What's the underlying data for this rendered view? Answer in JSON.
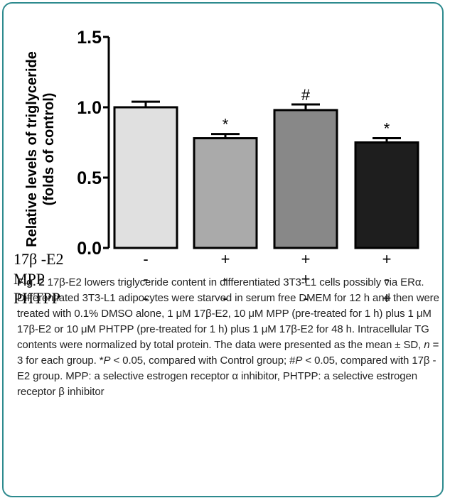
{
  "chart_data": {
    "type": "bar",
    "categories": [
      "Control",
      "17β-E2",
      "17β-E2 + MPP",
      "17β-E2 + PHTPP"
    ],
    "values": [
      1.0,
      0.78,
      0.98,
      0.75
    ],
    "errors": [
      0.04,
      0.03,
      0.04,
      0.03
    ],
    "significance": [
      "",
      "*",
      "#",
      "*"
    ],
    "bar_colors": [
      "#e0e0e0",
      "#aaaaaa",
      "#888888",
      "#1e1e1e"
    ],
    "ylabel_line1": "Relative levels of triglyceride",
    "ylabel_line2": "(folds of control)",
    "ylim": [
      0,
      1.5
    ],
    "yticks": [
      "0.0",
      "0.5",
      "1.0",
      "1.5"
    ],
    "ytick_values": [
      0,
      0.5,
      1.0,
      1.5
    ],
    "treatments": [
      {
        "label": "17β -E2",
        "marks": [
          "-",
          "+",
          "+",
          "+"
        ]
      },
      {
        "label": "MPP",
        "marks": [
          "-",
          "-",
          "+",
          "-"
        ]
      },
      {
        "label": "PHTPP",
        "marks": [
          "-",
          "-",
          "-",
          "+"
        ]
      }
    ]
  },
  "caption": {
    "fig_label": "Fig. 2",
    "title_text": " 17β-E2 lowers triglyceride content in differentiated 3T3-L1 cells possibly via ERα. Differentiated 3T3-L1 adipocytes were starved in serum free DMEM for 12 h and then were treated with 0.1% DMSO alone, 1 μM 17β-E2, 10 μM MPP (pre-treated for 1 h) plus 1 μM 17β-E2 or 10 μM PHTPP (pre-treated for 1 h) plus 1 μM 17β-E2 for 48 h. Intracellular TG contents were normalized by total protein. The data were presented as the mean ± SD, ",
    "n_italic": "n",
    "after_n": " = 3 for each group. *",
    "p1_italic": "P",
    "after_p1": " < 0.05, compared with Control group; #",
    "p2_italic": "P",
    "after_p2": " < 0.05, compared with 17β -E2 group. MPP: a selective estrogen receptor α inhibitor, PHTPP: a selective estrogen receptor β inhibitor"
  }
}
